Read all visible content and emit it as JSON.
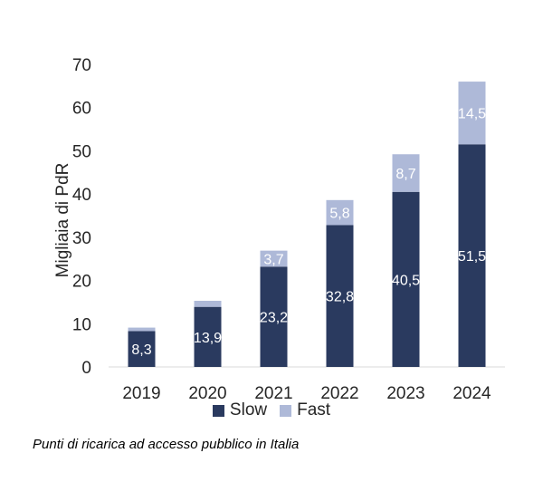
{
  "chart_data": {
    "type": "bar",
    "stacked": true,
    "categories": [
      "2019",
      "2020",
      "2021",
      "2022",
      "2023",
      "2024"
    ],
    "series": [
      {
        "name": "Slow",
        "values": [
          8.3,
          13.9,
          23.2,
          32.8,
          40.5,
          51.5
        ],
        "labels": [
          "8,3",
          "13,9",
          "23,2",
          "32,8",
          "40,5",
          "51,5"
        ],
        "color": "#2a3a5f"
      },
      {
        "name": "Fast",
        "values": [
          0.8,
          1.4,
          3.7,
          5.8,
          8.7,
          14.5
        ],
        "labels": [
          "",
          "",
          "3,7",
          "5,8",
          "8,7",
          "14,5"
        ],
        "color": "#aeb9d8"
      }
    ],
    "ylabel": "Migliaia di PdR",
    "ylim": [
      0,
      70
    ],
    "yticks": [
      0,
      10,
      20,
      30,
      40,
      50,
      60,
      70
    ],
    "grid": false,
    "legend_position": "bottom"
  },
  "caption": "Punti di ricarica ad accesso pubblico in Italia"
}
